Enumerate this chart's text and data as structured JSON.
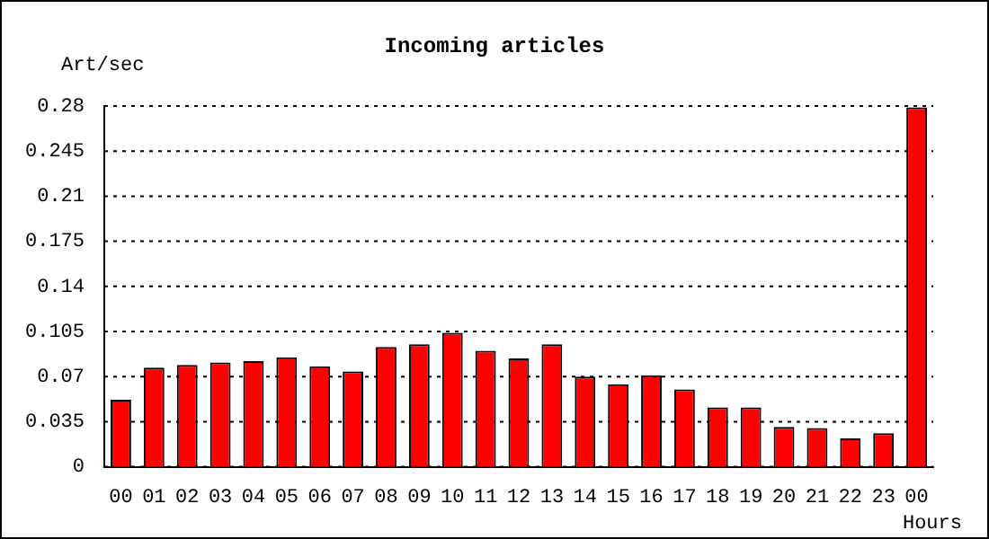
{
  "chart_data": {
    "type": "bar",
    "title": "Incoming articles",
    "xlabel": "Hours",
    "ylabel": "Art/sec",
    "categories": [
      "00",
      "01",
      "02",
      "03",
      "04",
      "05",
      "06",
      "07",
      "08",
      "09",
      "10",
      "11",
      "12",
      "13",
      "14",
      "15",
      "16",
      "17",
      "18",
      "19",
      "20",
      "21",
      "22",
      "23",
      "00"
    ],
    "values": [
      0.052,
      0.077,
      0.079,
      0.081,
      0.082,
      0.085,
      0.078,
      0.074,
      0.093,
      0.095,
      0.104,
      0.09,
      0.084,
      0.095,
      0.07,
      0.064,
      0.071,
      0.06,
      0.046,
      0.046,
      0.031,
      0.03,
      0.022,
      0.026,
      0.279
    ],
    "color": "#ff0000",
    "ylim": [
      0,
      0.28
    ],
    "yticks": [
      0,
      0.035,
      0.07,
      0.105,
      0.14,
      0.175,
      0.21,
      0.245,
      0.28
    ],
    "grid": "y",
    "legend": false
  }
}
